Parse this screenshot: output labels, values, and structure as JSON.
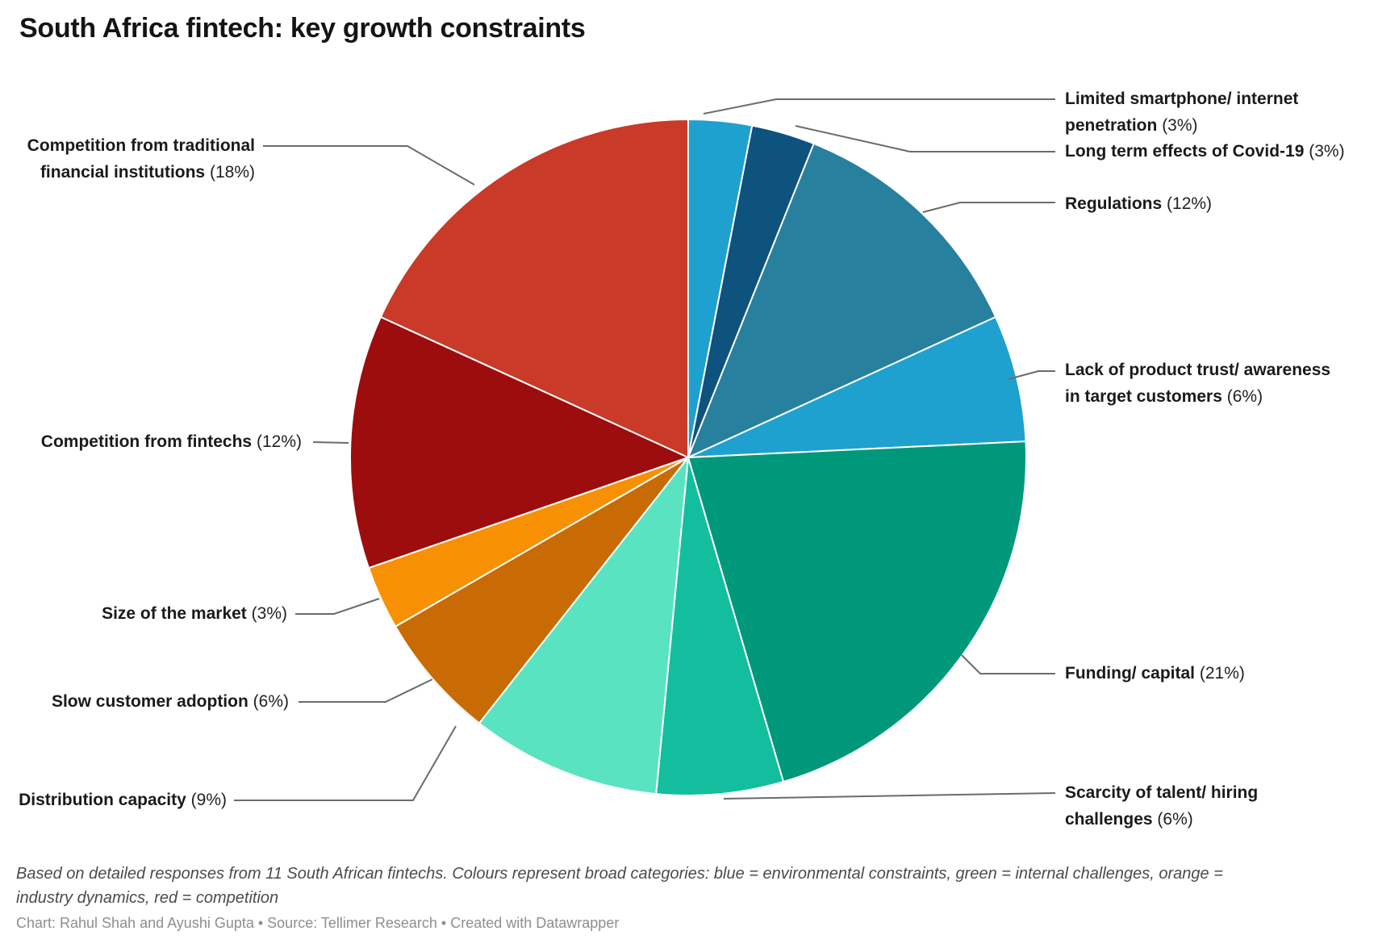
{
  "title": "South Africa fintech: key growth constraints",
  "notes": "Based on detailed responses from 11 South African fintechs. Colours represent broad categories: blue = environmental constraints, green = internal challenges, orange = industry dynamics, red = competition",
  "attribution": "Chart: Rahul Shah and Ayushi Gupta • Source: Tellimer Research • Created with Datawrapper",
  "chart_data": {
    "type": "pie",
    "title": "South Africa fintech: key growth constraints",
    "unit": "%",
    "start_angle_deg": 0,
    "direction": "clockwise",
    "segments": [
      {
        "label": "Limited smartphone/ internet penetration",
        "pct": 3,
        "pct_display": "(3%)",
        "color": "#1FA1D0"
      },
      {
        "label": "Long term effects of Covid-19",
        "pct": 3,
        "pct_display": "(3%)",
        "color": "#0E527E"
      },
      {
        "label": "Regulations",
        "pct": 12,
        "pct_display": "(12%)",
        "color": "#28809F"
      },
      {
        "label": "Lack of product trust/ awareness in target customers",
        "pct": 6,
        "pct_display": "(6%)",
        "color": "#1FA1D0"
      },
      {
        "label": "Funding/ capital",
        "pct": 21,
        "pct_display": "(21%)",
        "color": "#00987A"
      },
      {
        "label": "Scarcity of talent/ hiring challenges",
        "pct": 6,
        "pct_display": "(6%)",
        "color": "#13BE9E"
      },
      {
        "label": "Distribution capacity",
        "pct": 9,
        "pct_display": "(9%)",
        "color": "#5AE3C0"
      },
      {
        "label": "Slow customer adoption",
        "pct": 6,
        "pct_display": "(6%)",
        "color": "#C96B04"
      },
      {
        "label": "Size of the market",
        "pct": 3,
        "pct_display": "(3%)",
        "color": "#F79103"
      },
      {
        "label": "Competition from fintechs",
        "pct": 12,
        "pct_display": "(12%)",
        "color": "#9D0D0D"
      },
      {
        "label": "Competition from traditional financial institutions",
        "pct": 18,
        "pct_display": "(18%)",
        "color": "#C93A29"
      }
    ],
    "color_legend": {
      "blue": "environmental constraints",
      "green": "internal challenges",
      "orange": "industry dynamics",
      "red": "competition"
    }
  }
}
